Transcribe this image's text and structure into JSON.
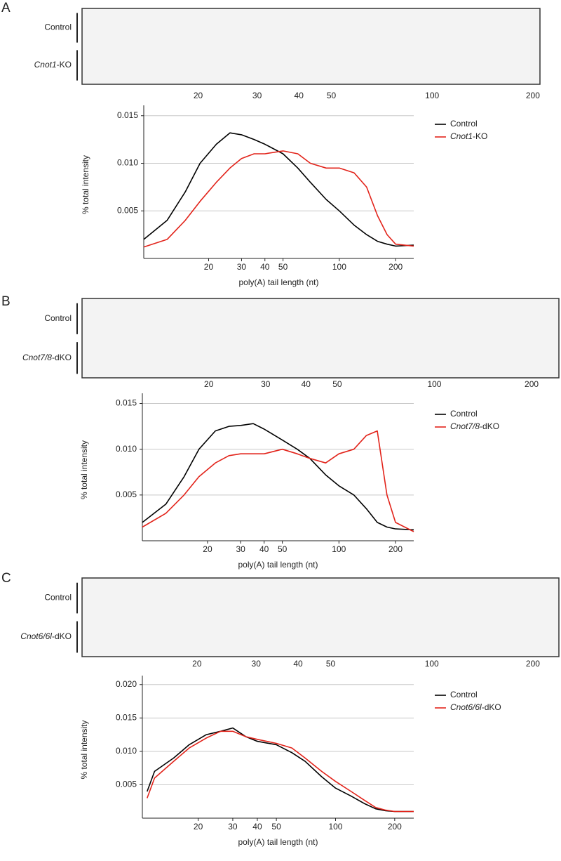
{
  "panels": [
    {
      "label": "A",
      "gel_xlim": [
        9,
        210
      ],
      "gel_xticks": [
        20,
        30,
        40,
        50,
        100,
        200
      ]
    },
    {
      "label": "B",
      "gel_xlim": [
        8.1,
        243
      ],
      "gel_xticks": [
        20,
        30,
        40,
        50,
        100,
        200
      ]
    },
    {
      "label": "C",
      "gel_xlim": [
        9.1,
        239
      ],
      "gel_xticks": [
        20,
        30,
        40,
        50,
        100,
        200
      ]
    }
  ],
  "chart_data": [
    {
      "type": "line",
      "xlabel": "poly(A) tail length (nt)",
      "ylabel": "% total intensity",
      "xscale": "log",
      "xlim": [
        9,
        250
      ],
      "xticks": [
        20,
        30,
        40,
        50,
        100,
        200
      ],
      "ylim": [
        0,
        0.0155
      ],
      "yticks": [
        0.005,
        {
          "value": 0.01,
          "label": "0.010"
        },
        0.015
      ],
      "grid": true,
      "legend": "right",
      "x": [
        9,
        12,
        15,
        18,
        22,
        26,
        30,
        35,
        40,
        50,
        60,
        70,
        85,
        100,
        120,
        140,
        160,
        180,
        200,
        250
      ],
      "series": [
        {
          "name": "Control",
          "color": "#000000",
          "values": [
            0.002,
            0.004,
            0.007,
            0.01,
            0.012,
            0.0132,
            0.013,
            0.0125,
            0.012,
            0.011,
            0.0095,
            0.008,
            0.0062,
            0.005,
            0.0035,
            0.0025,
            0.0018,
            0.0015,
            0.0013,
            0.0014
          ]
        },
        {
          "name": "Cnot1-KO",
          "color": "#e2231a",
          "values": [
            0.0012,
            0.002,
            0.004,
            0.006,
            0.008,
            0.0095,
            0.0105,
            0.011,
            0.011,
            0.0113,
            0.011,
            0.01,
            0.0095,
            0.0095,
            0.009,
            0.0075,
            0.0045,
            0.0025,
            0.0015,
            0.0013
          ]
        }
      ]
    },
    {
      "type": "line",
      "xlabel": "poly(A) tail length (nt)",
      "ylabel": "% total intensity",
      "xscale": "log",
      "xlim": [
        9,
        250
      ],
      "xticks": [
        20,
        30,
        40,
        50,
        100,
        200
      ],
      "ylim": [
        0,
        0.0155
      ],
      "yticks": [
        0.005,
        {
          "value": 0.01,
          "label": "0.010"
        },
        0.015
      ],
      "grid": true,
      "legend": "right",
      "x": [
        9,
        12,
        15,
        18,
        22,
        26,
        30,
        35,
        40,
        50,
        60,
        70,
        85,
        100,
        120,
        140,
        160,
        180,
        200,
        250
      ],
      "series": [
        {
          "name": "Control",
          "color": "#000000",
          "values": [
            0.002,
            0.004,
            0.007,
            0.01,
            0.012,
            0.0125,
            0.0126,
            0.0128,
            0.0122,
            0.011,
            0.01,
            0.009,
            0.0072,
            0.006,
            0.005,
            0.0035,
            0.002,
            0.0015,
            0.0013,
            0.0012
          ]
        },
        {
          "name": "Cnot7/8-dKO",
          "color": "#e2231a",
          "values": [
            0.0015,
            0.003,
            0.005,
            0.007,
            0.0085,
            0.0093,
            0.0095,
            0.0095,
            0.0095,
            0.01,
            0.0095,
            0.009,
            0.0085,
            0.0095,
            0.01,
            0.0115,
            0.012,
            0.005,
            0.002,
            0.001
          ]
        }
      ]
    },
    {
      "type": "line",
      "xlabel": "poly(A) tail length (nt)",
      "ylabel": "% total intensity",
      "xscale": "log",
      "xlim": [
        10.4,
        250
      ],
      "xticks": [
        20,
        30,
        40,
        50,
        100,
        200
      ],
      "ylim": [
        0,
        0.0205
      ],
      "yticks": [
        0.005,
        {
          "value": 0.01,
          "label": "0.010"
        },
        0.015,
        {
          "value": 0.02,
          "label": "0.020"
        }
      ],
      "grid": true,
      "legend": "right",
      "x": [
        11,
        12,
        15,
        18,
        22,
        26,
        30,
        35,
        40,
        50,
        60,
        70,
        85,
        100,
        120,
        140,
        160,
        180,
        200,
        250
      ],
      "series": [
        {
          "name": "Control",
          "color": "#000000",
          "values": [
            0.004,
            0.007,
            0.009,
            0.011,
            0.0125,
            0.013,
            0.0135,
            0.0122,
            0.0115,
            0.011,
            0.0098,
            0.0085,
            0.0062,
            0.0045,
            0.0033,
            0.0022,
            0.0014,
            0.0011,
            0.001,
            0.001
          ]
        },
        {
          "name": "Cnot6/6l-dKO",
          "color": "#e2231a",
          "values": [
            0.003,
            0.006,
            0.0085,
            0.0105,
            0.012,
            0.013,
            0.013,
            0.0122,
            0.0118,
            0.0112,
            0.0105,
            0.009,
            0.007,
            0.0055,
            0.004,
            0.0027,
            0.0016,
            0.0012,
            0.001,
            0.001
          ]
        }
      ]
    }
  ]
}
